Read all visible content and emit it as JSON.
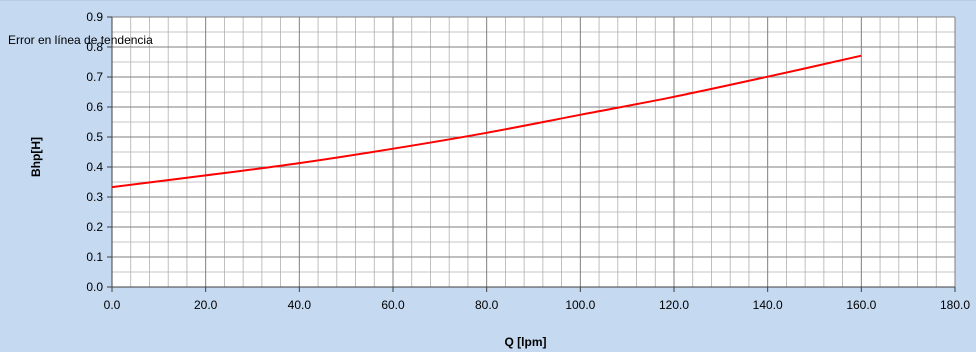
{
  "chart_data": {
    "type": "line",
    "title": "",
    "xlabel": "Q [lpm]",
    "ylabel": "Bhp[H]",
    "xlim": [
      0,
      180
    ],
    "ylim": [
      0,
      0.9
    ],
    "x_ticks": [
      0,
      20,
      40,
      60,
      80,
      100,
      120,
      140,
      160,
      180
    ],
    "x_tick_labels": [
      "0.0",
      "20.0",
      "40.0",
      "60.0",
      "80.0",
      "100.0",
      "120.0",
      "140.0",
      "160.0",
      "180.0"
    ],
    "y_ticks": [
      0,
      0.1,
      0.2,
      0.3,
      0.4,
      0.5,
      0.6,
      0.7,
      0.8,
      0.9
    ],
    "y_tick_labels": [
      "0.0",
      "0.1",
      "0.2",
      "0.3",
      "0.4",
      "0.5",
      "0.6",
      "0.7",
      "0.8",
      "0.9"
    ],
    "grid": true,
    "annotation": "Error en línea de tendencia",
    "series": [
      {
        "color": "#ff0000",
        "x": [
          0,
          20,
          40,
          60,
          80,
          100,
          120,
          140,
          160
        ],
        "y": [
          0.333,
          0.372,
          0.413,
          0.461,
          0.514,
          0.574,
          0.634,
          0.701,
          0.771
        ]
      }
    ]
  },
  "colors": {
    "background": "#c5d9f1",
    "plot_background": "#ffffff",
    "grid_major": "#7f7f7f",
    "grid_minor": "#b0b0b0"
  }
}
